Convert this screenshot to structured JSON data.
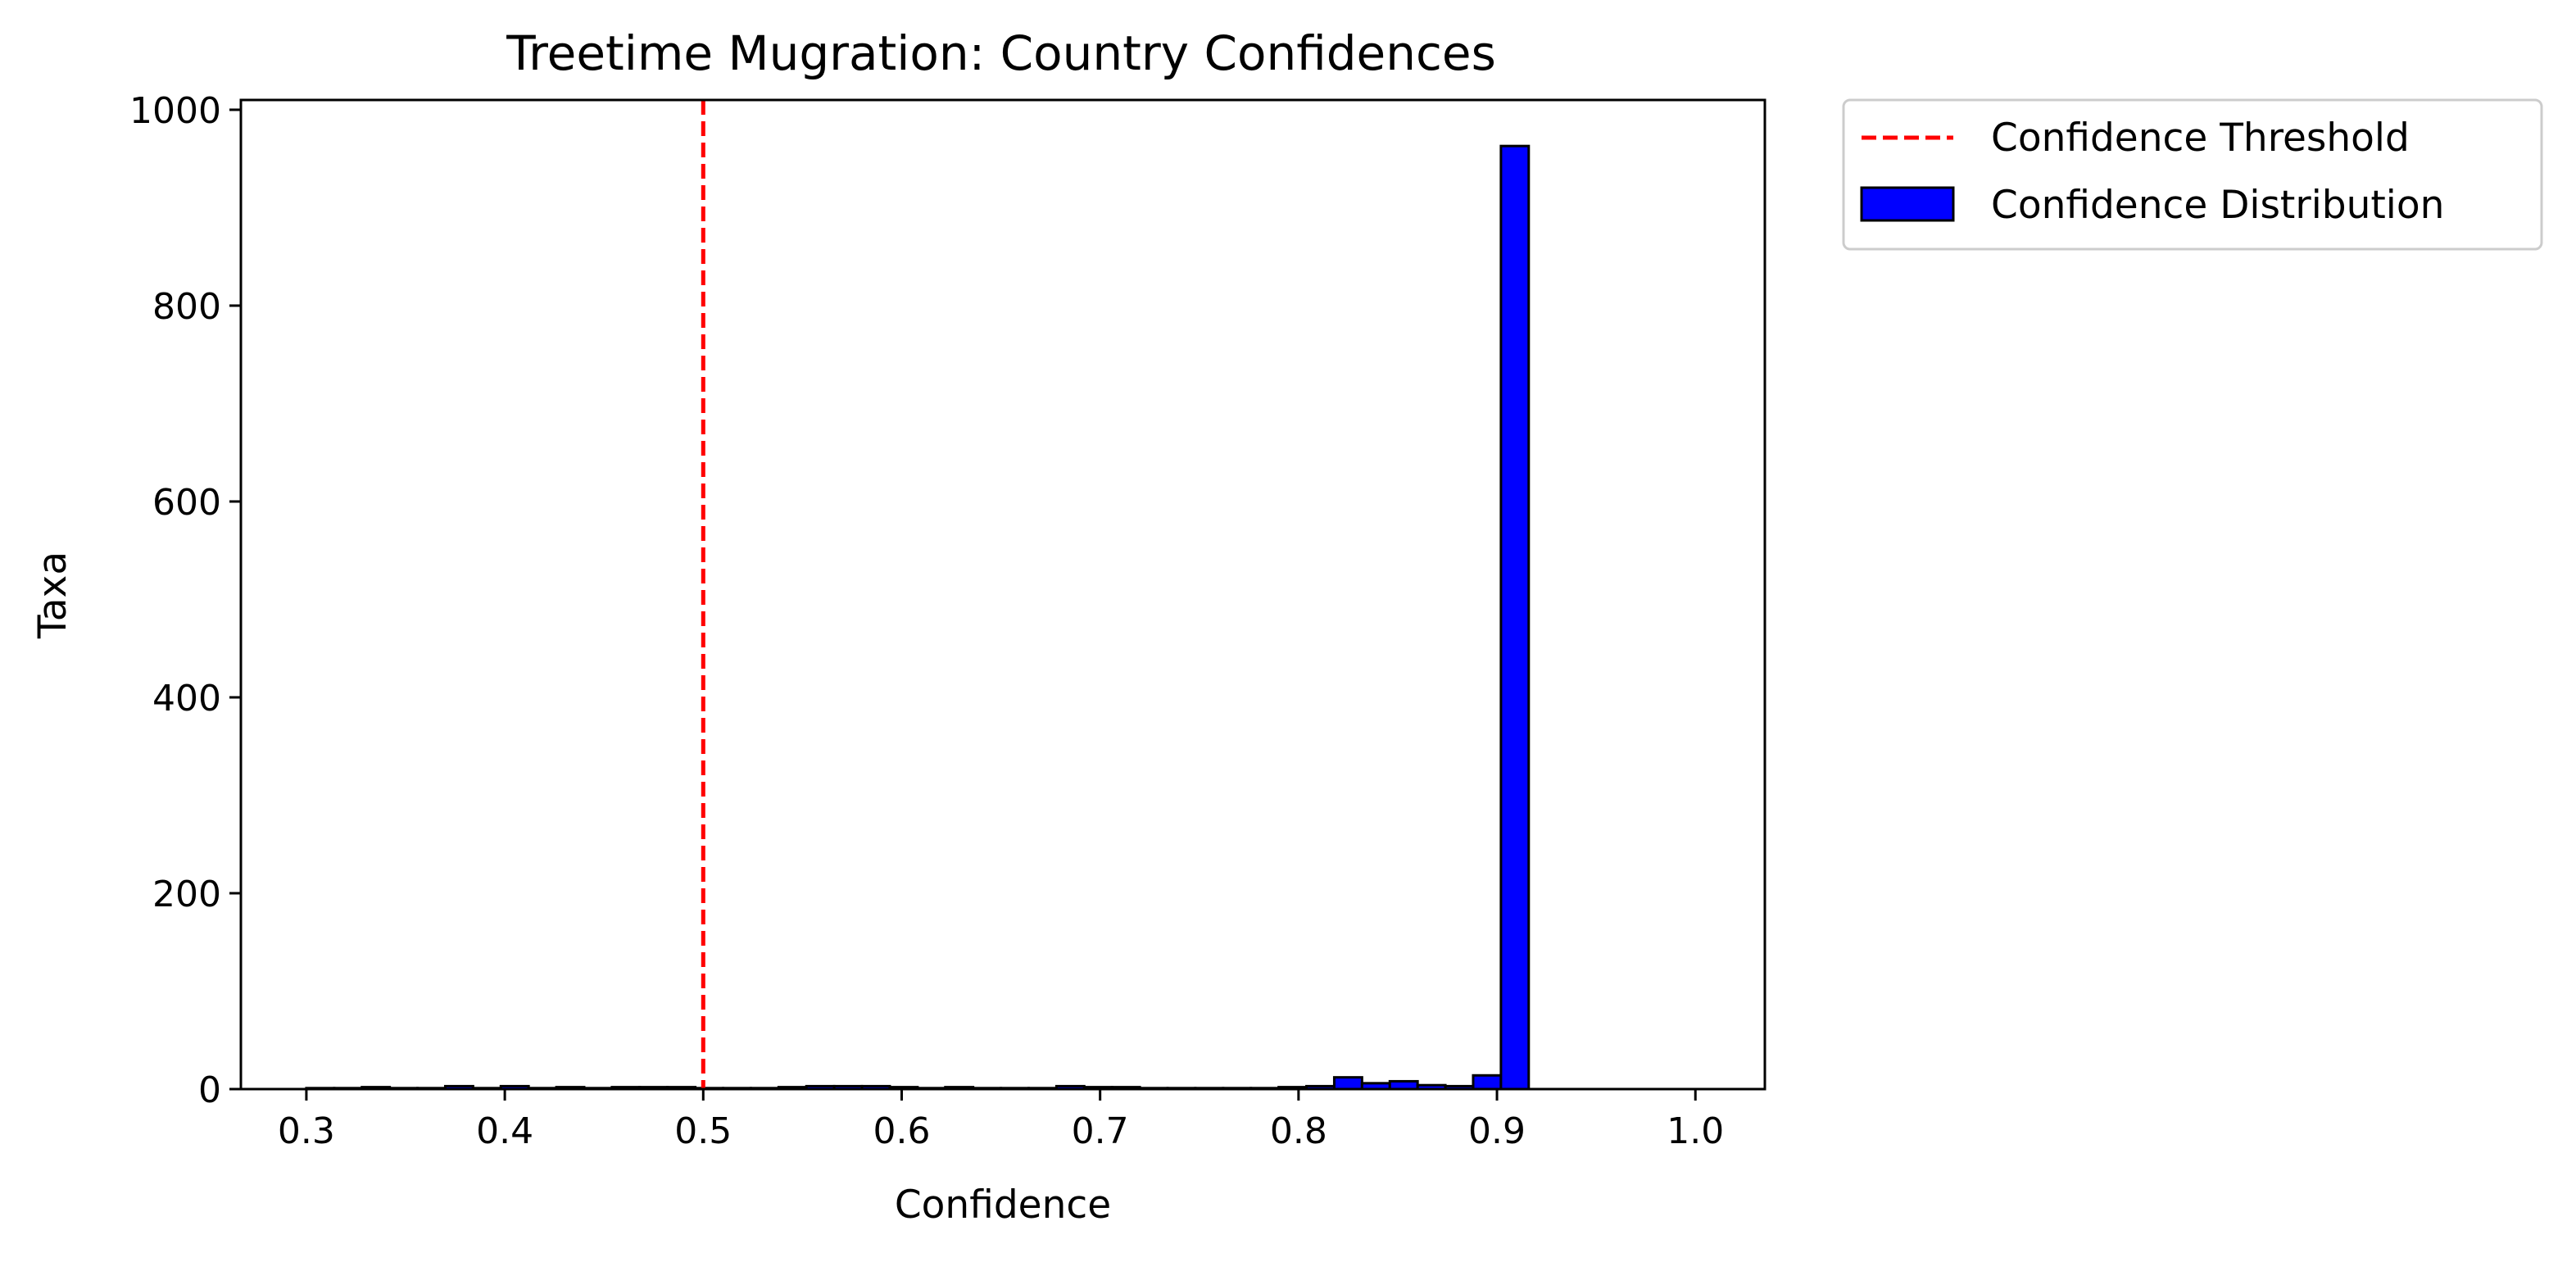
{
  "chart_data": {
    "type": "bar",
    "title": "Treetime Mugration: Country Confidences",
    "xlabel": "Confidence",
    "ylabel": "Taxa",
    "xlim": [
      0.267,
      1.035
    ],
    "ylim": [
      0,
      1010
    ],
    "xticks": [
      "0.3",
      "0.4",
      "0.5",
      "0.6",
      "0.7",
      "0.8",
      "0.9",
      "1.0"
    ],
    "xtick_values": [
      0.3,
      0.4,
      0.5,
      0.6,
      0.7,
      0.8,
      0.9,
      1.0
    ],
    "yticks": [
      "0",
      "200",
      "400",
      "600",
      "800",
      "1000"
    ],
    "ytick_values": [
      0,
      200,
      400,
      600,
      800,
      1000
    ],
    "grid": false,
    "legend_position": "outside-top-right",
    "threshold": {
      "name": "Confidence Threshold",
      "x": 0.5,
      "color": "#ff0000",
      "style": "dashed"
    },
    "histogram": {
      "name": "Confidence Distribution",
      "color": "#0000ff",
      "edgecolor": "#000000",
      "bin_start": 0.3,
      "bin_width": 0.014,
      "counts": [
        1,
        1,
        2,
        1,
        1,
        3,
        1,
        3,
        1,
        2,
        1,
        2,
        2,
        2,
        1,
        1,
        1,
        2,
        3,
        3,
        3,
        2,
        1,
        2,
        1,
        1,
        1,
        3,
        2,
        2,
        1,
        1,
        1,
        1,
        1,
        2,
        3,
        12,
        6,
        8,
        4,
        3,
        14,
        963
      ]
    }
  },
  "legend": {
    "threshold_label": "Confidence Threshold",
    "distribution_label": "Confidence Distribution"
  }
}
